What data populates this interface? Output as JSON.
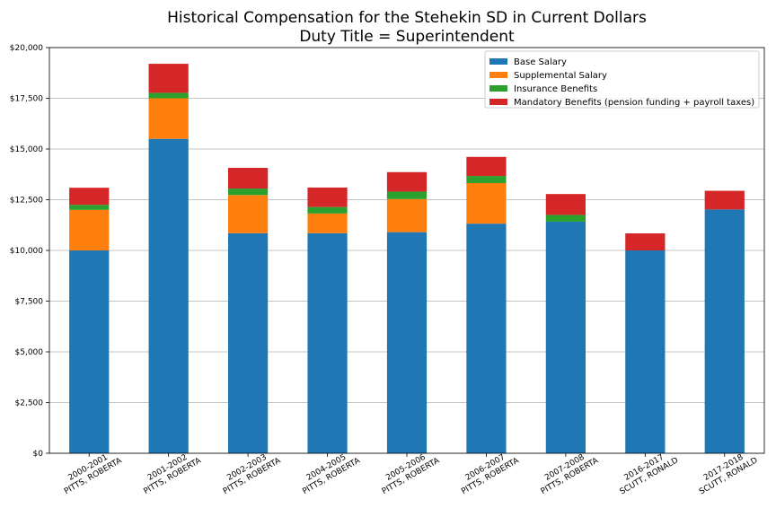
{
  "chart_data": {
    "type": "bar",
    "stacked": true,
    "title": "Historical Compensation for the Stehekin SD in Current Dollars",
    "subtitle": "Duty Title = Superintendent",
    "xlabel": "",
    "ylabel": "",
    "ylim": [
      0,
      20000
    ],
    "yticks": [
      0,
      2500,
      5000,
      7500,
      10000,
      12500,
      15000,
      17500,
      20000
    ],
    "ytick_labels": [
      "$0",
      "$2,500",
      "$5,000",
      "$7,500",
      "$10,000",
      "$12,500",
      "$15,000",
      "$17,500",
      "$20,000"
    ],
    "grid": "y",
    "legend_position": "top-right",
    "categories": [
      [
        "2000-2001",
        "PITTS, ROBERTA"
      ],
      [
        "2001-2002",
        "PITTS, ROBERTA"
      ],
      [
        "2002-2003",
        "PITTS, ROBERTA"
      ],
      [
        "2004-2005",
        "PITTS, ROBERTA"
      ],
      [
        "2005-2006",
        "PITTS, ROBERTA"
      ],
      [
        "2006-2007",
        "PITTS, ROBERTA"
      ],
      [
        "2007-2008",
        "PITTS, ROBERTA"
      ],
      [
        "2016-2017",
        "SCUTT, RONALD"
      ],
      [
        "2017-2018",
        "SCUTT, RONALD"
      ]
    ],
    "series": [
      {
        "name": "Base Salary",
        "color": "#1f77b4",
        "values": [
          10000,
          15500,
          10850,
          10850,
          10900,
          11320,
          11420,
          10000,
          12020
        ]
      },
      {
        "name": "Supplemental Salary",
        "color": "#ff7f0e",
        "values": [
          2000,
          2000,
          1880,
          970,
          1630,
          2000,
          0,
          0,
          0
        ]
      },
      {
        "name": "Insurance Benefits",
        "color": "#2ca02c",
        "values": [
          250,
          270,
          320,
          320,
          370,
          350,
          330,
          0,
          0
        ]
      },
      {
        "name": "Mandatory Benefits (pension funding + payroll taxes)",
        "color": "#d62728",
        "values": [
          840,
          1430,
          1020,
          960,
          960,
          940,
          1030,
          840,
          920
        ]
      }
    ]
  }
}
